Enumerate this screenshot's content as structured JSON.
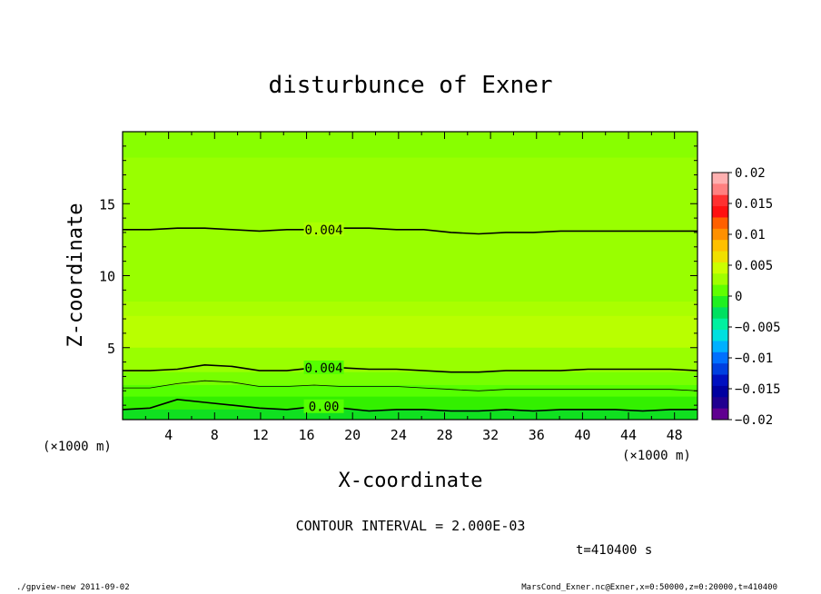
{
  "chart_data": {
    "type": "heatmap",
    "title": "disturbunce of Exner",
    "xlabel": "X-coordinate",
    "ylabel": "Z-coordinate",
    "x_unit": "(×1000 m)",
    "y_unit": "(×1000 m)",
    "xlim": [
      0,
      50
    ],
    "ylim": [
      0,
      20
    ],
    "x_ticks": [
      "4",
      "8",
      "12",
      "16",
      "20",
      "24",
      "28",
      "32",
      "36",
      "40",
      "44",
      "48"
    ],
    "y_ticks": [
      "5",
      "10",
      "15"
    ],
    "contour_interval_label": "CONTOUR INTERVAL = 2.000E-03",
    "time_label": "t=410400 s",
    "colorbar": {
      "ticks": [
        "0.02",
        "0.015",
        "0.01",
        "0.005",
        "0",
        "−0.005",
        "−0.01",
        "−0.015",
        "−0.02"
      ],
      "range": [
        -0.02,
        0.02
      ],
      "bands": [
        "#ffb0b0",
        "#ff8080",
        "#ff3030",
        "#ff1010",
        "#ff6000",
        "#ff9000",
        "#ffc000",
        "#f0e000",
        "#ccff00",
        "#a0ff00",
        "#60ff00",
        "#20f020",
        "#00e060",
        "#00f0a0",
        "#00e0e0",
        "#00b0ff",
        "#0070ff",
        "#0040e0",
        "#0010c0",
        "#0000a0",
        "#200090",
        "#600090"
      ]
    },
    "contour_labels": [
      "0.004",
      "0.004",
      "0.00"
    ],
    "contours": [
      {
        "label": "0.004",
        "z": [
          13.2,
          13.2,
          13.3,
          13.3,
          13.2,
          13.1,
          13.2,
          13.2,
          13.3,
          13.3,
          13.2,
          13.2,
          13.0,
          12.9,
          13.0,
          13.0,
          13.1,
          13.1,
          13.1,
          13.1,
          13.1,
          13.1
        ]
      },
      {
        "label": "0.004",
        "z": [
          3.4,
          3.4,
          3.5,
          3.8,
          3.7,
          3.4,
          3.4,
          3.6,
          3.6,
          3.5,
          3.5,
          3.4,
          3.3,
          3.3,
          3.4,
          3.4,
          3.4,
          3.5,
          3.5,
          3.5,
          3.5,
          3.4
        ]
      },
      {
        "label": "",
        "z": [
          2.2,
          2.2,
          2.5,
          2.7,
          2.6,
          2.3,
          2.3,
          2.4,
          2.3,
          2.3,
          2.3,
          2.2,
          2.1,
          2.0,
          2.1,
          2.1,
          2.1,
          2.1,
          2.1,
          2.1,
          2.1,
          2.0
        ]
      },
      {
        "label": "0.00",
        "z": [
          0.7,
          0.8,
          1.4,
          1.2,
          1.0,
          0.8,
          0.7,
          0.9,
          0.8,
          0.6,
          0.7,
          0.7,
          0.6,
          0.6,
          0.7,
          0.6,
          0.7,
          0.7,
          0.7,
          0.6,
          0.7,
          0.7
        ]
      }
    ],
    "fill_layers": [
      {
        "color": "#88ff00",
        "z_top": 20
      },
      {
        "color": "#99ff00",
        "z_top": 18.2
      },
      {
        "color": "#aaff00",
        "z_top": 8.2
      },
      {
        "color": "#b9ff00",
        "z_top": 7.2
      },
      {
        "color": "#99ff00",
        "z_top": 5.0
      },
      {
        "color": "#77ff00",
        "z_top": 3.3
      },
      {
        "color": "#55ff00",
        "z_top": 2.4
      },
      {
        "color": "#33f000",
        "z_top": 1.6
      },
      {
        "color": "#10e020",
        "z_top": 0.7
      }
    ]
  },
  "footer": {
    "left": "./gpview-new   2011-09-02",
    "right": "MarsCond_Exner.nc@Exner,x=0:50000,z=0:20000,t=410400"
  }
}
